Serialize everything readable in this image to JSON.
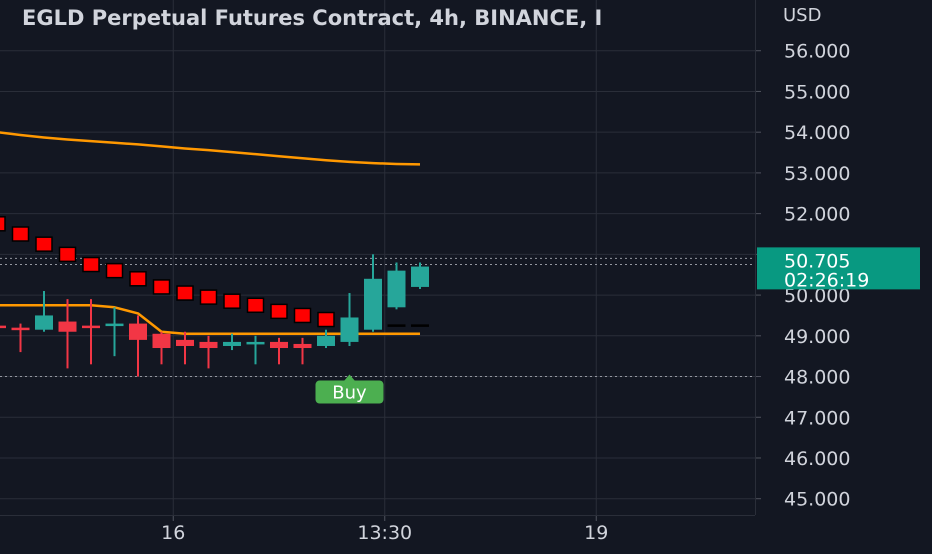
{
  "chart_data": {
    "type": "candlestick",
    "title": "EGLD Perpetual Futures Contract, 4h, BINANCE, I",
    "y_unit": "USD",
    "ylim": [
      44.6,
      57.0
    ],
    "y_ticks": [
      "56.000",
      "55.000",
      "54.000",
      "53.000",
      "52.000",
      "51.000",
      "50.000",
      "49.000",
      "48.000",
      "47.000",
      "46.000",
      "45.000"
    ],
    "x_ticks": [
      {
        "label": "16",
        "bar": 7.5
      },
      {
        "label": "13:30",
        "bar": 16.5
      },
      {
        "label": "19",
        "bar": 25.5
      }
    ],
    "candles": [
      {
        "o": 49.25,
        "h": 49.4,
        "l": 48.6,
        "c": 49.2
      },
      {
        "o": 49.2,
        "h": 49.3,
        "l": 48.6,
        "c": 49.15
      },
      {
        "o": 49.15,
        "h": 50.1,
        "l": 49.1,
        "c": 49.5
      },
      {
        "o": 49.35,
        "h": 49.9,
        "l": 48.2,
        "c": 49.1
      },
      {
        "o": 49.25,
        "h": 49.9,
        "l": 48.3,
        "c": 49.2
      },
      {
        "o": 49.25,
        "h": 49.7,
        "l": 48.5,
        "c": 49.3
      },
      {
        "o": 49.3,
        "h": 49.5,
        "l": 48.0,
        "c": 48.9
      },
      {
        "o": 49.05,
        "h": 49.1,
        "l": 48.3,
        "c": 48.7
      },
      {
        "o": 48.9,
        "h": 49.1,
        "l": 48.3,
        "c": 48.75
      },
      {
        "o": 48.85,
        "h": 49.0,
        "l": 48.2,
        "c": 48.7
      },
      {
        "o": 48.75,
        "h": 49.05,
        "l": 48.65,
        "c": 48.85
      },
      {
        "o": 48.8,
        "h": 49.0,
        "l": 48.3,
        "c": 48.85
      },
      {
        "o": 48.85,
        "h": 48.95,
        "l": 48.3,
        "c": 48.7
      },
      {
        "o": 48.8,
        "h": 48.95,
        "l": 48.3,
        "c": 48.7
      },
      {
        "o": 48.75,
        "h": 49.15,
        "l": 48.7,
        "c": 49.0
      },
      {
        "o": 48.85,
        "h": 50.05,
        "l": 48.75,
        "c": 49.45
      },
      {
        "o": 49.15,
        "h": 51.0,
        "l": 49.1,
        "c": 50.4
      },
      {
        "o": 49.7,
        "h": 50.8,
        "l": 49.65,
        "c": 50.6
      },
      {
        "o": 50.2,
        "h": 50.8,
        "l": 50.15,
        "c": 50.7
      }
    ],
    "ma_slow": [
      54.0,
      53.93,
      53.87,
      53.82,
      53.78,
      53.74,
      53.7,
      53.65,
      53.6,
      53.56,
      53.51,
      53.46,
      53.41,
      53.36,
      53.31,
      53.27,
      53.24,
      53.22,
      53.21
    ],
    "trailing_stop": [
      {
        "bar": 0,
        "v": 51.75
      },
      {
        "bar": 1,
        "v": 51.5
      },
      {
        "bar": 2,
        "v": 51.25
      },
      {
        "bar": 3,
        "v": 51.0
      },
      {
        "bar": 4,
        "v": 50.75
      },
      {
        "bar": 5,
        "v": 50.6
      },
      {
        "bar": 6,
        "v": 50.4
      },
      {
        "bar": 7,
        "v": 50.2
      },
      {
        "bar": 8,
        "v": 50.05
      },
      {
        "bar": 9,
        "v": 49.95
      },
      {
        "bar": 10,
        "v": 49.85
      },
      {
        "bar": 11,
        "v": 49.75
      },
      {
        "bar": 12,
        "v": 49.6
      },
      {
        "bar": 13,
        "v": 49.5
      },
      {
        "bar": 14,
        "v": 49.4
      },
      {
        "bar": 17,
        "v": 49.25
      },
      {
        "bar": 18,
        "v": 49.25
      }
    ],
    "support_line": [
      49.75,
      49.75,
      49.75,
      49.75,
      49.75,
      49.7,
      49.55,
      49.1,
      49.05,
      49.05,
      49.05,
      49.05,
      49.05,
      49.05,
      49.05,
      49.05,
      49.05,
      49.05,
      49.05
    ],
    "h_lines": [
      48.0,
      50.75,
      50.9
    ],
    "signal": {
      "label": "Buy",
      "bar": 15,
      "price": 48.0,
      "color": "#4caf50"
    },
    "last_price": {
      "value": "50.705",
      "countdown": "02:26:19",
      "price": 50.705,
      "color": "#089981"
    },
    "colors": {
      "up": "#26a69a",
      "down": "#f23645",
      "ma_slow": "#ff9800",
      "support": "#ff9800",
      "stop": "#ff0000",
      "grid": "#2a2e39",
      "text": "#d1d4dc",
      "background": "#131722"
    }
  }
}
